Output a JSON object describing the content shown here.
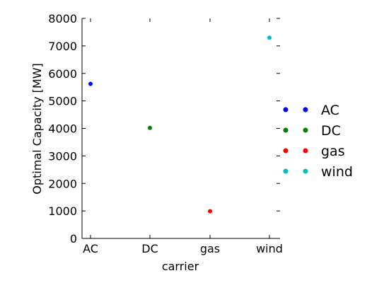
{
  "chart_data": {
    "type": "scatter",
    "title": "",
    "xlabel": "carrier",
    "ylabel": "Optimal Capacity [MW]",
    "categories": [
      "AC",
      "DC",
      "gas",
      "wind"
    ],
    "ylim": [
      0,
      8000
    ],
    "yticks": [
      0,
      1000,
      2000,
      3000,
      4000,
      5000,
      6000,
      7000,
      8000
    ],
    "grid": false,
    "legend_position": "right, outside plot",
    "series": [
      {
        "name": "AC",
        "color": "#0000ff",
        "x": "AC",
        "y": 5620
      },
      {
        "name": "DC",
        "color": "#008000",
        "x": "DC",
        "y": 4020
      },
      {
        "name": "gas",
        "color": "#ff0000",
        "x": "gas",
        "y": 990
      },
      {
        "name": "wind",
        "color": "#00bfbf",
        "x": "wind",
        "y": 7300
      }
    ]
  }
}
